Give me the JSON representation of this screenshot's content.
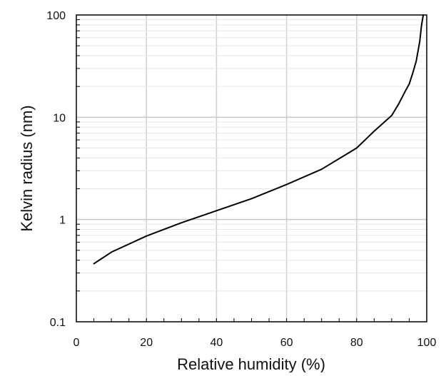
{
  "chart_data": {
    "type": "line",
    "title": "",
    "xlabel": "Relative humidity (%)",
    "ylabel": "Kelvin radius (nm)",
    "xlim": [
      0,
      100
    ],
    "ylim": [
      0.1,
      100
    ],
    "yscale": "log",
    "grid": true,
    "xticks": [
      0,
      20,
      40,
      60,
      80,
      100
    ],
    "xtick_labels": [
      "0",
      "20",
      "40",
      "60",
      "80",
      "100"
    ],
    "yticks": [
      0.1,
      1,
      10,
      100
    ],
    "ytick_labels": [
      "0.1",
      "1",
      "10",
      "100"
    ],
    "series": [
      {
        "color": "#000000",
        "x": [
          5,
          10,
          20,
          30,
          40,
          50,
          60,
          70,
          80,
          85,
          90,
          92,
          94,
          95,
          96,
          97,
          98,
          98.5,
          99
        ],
        "y": [
          0.37,
          0.48,
          0.69,
          0.93,
          1.22,
          1.6,
          2.2,
          3.1,
          5.0,
          7.3,
          10.4,
          13.5,
          18.3,
          21.2,
          27,
          35.5,
          55,
          78,
          100
        ]
      }
    ]
  }
}
